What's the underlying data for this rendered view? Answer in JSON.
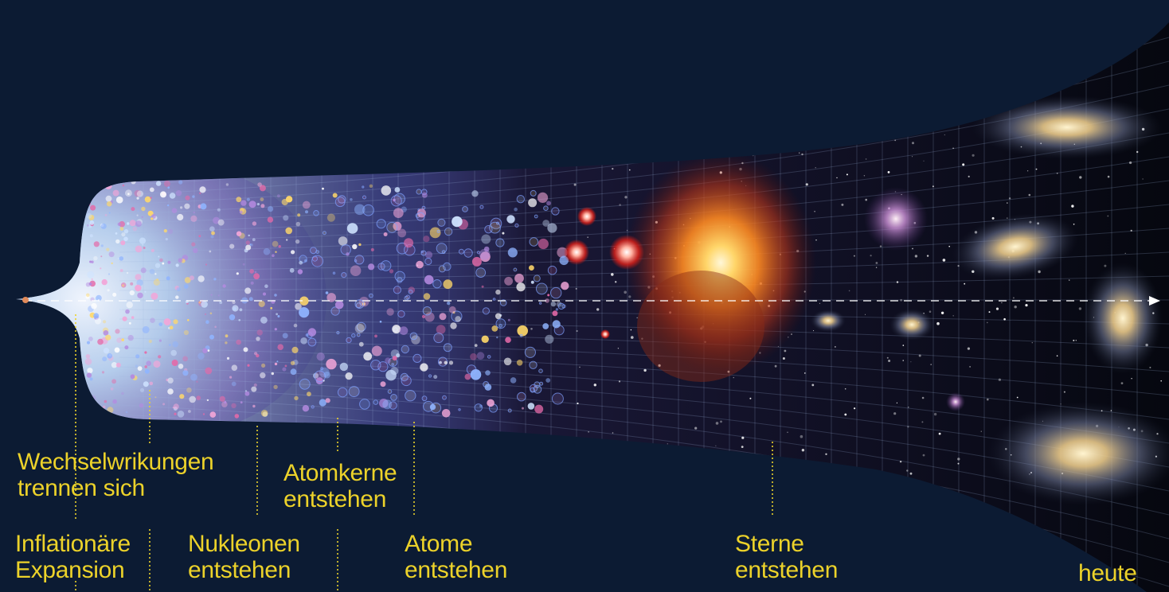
{
  "labels": {
    "inflation": {
      "line1": "Inflationäre",
      "line2": "Expansion"
    },
    "interactions": {
      "line1": "Wechselwrikungen",
      "line2": "trennen sich"
    },
    "nucleons": {
      "line1": "Nukleonen",
      "line2": "entstehen"
    },
    "nuclei": {
      "line1": "Atomkerne",
      "line2": "entstehen"
    },
    "atoms": {
      "line1": "Atome",
      "line2": "entstehen"
    },
    "stars": {
      "line1": "Sterne",
      "line2": "entstehen"
    },
    "today": "heute"
  },
  "colors": {
    "background": "#0c1b33",
    "label": "#ecd22a",
    "timeline_arrow": "#ffffff",
    "grid": "#9fb6e0"
  }
}
